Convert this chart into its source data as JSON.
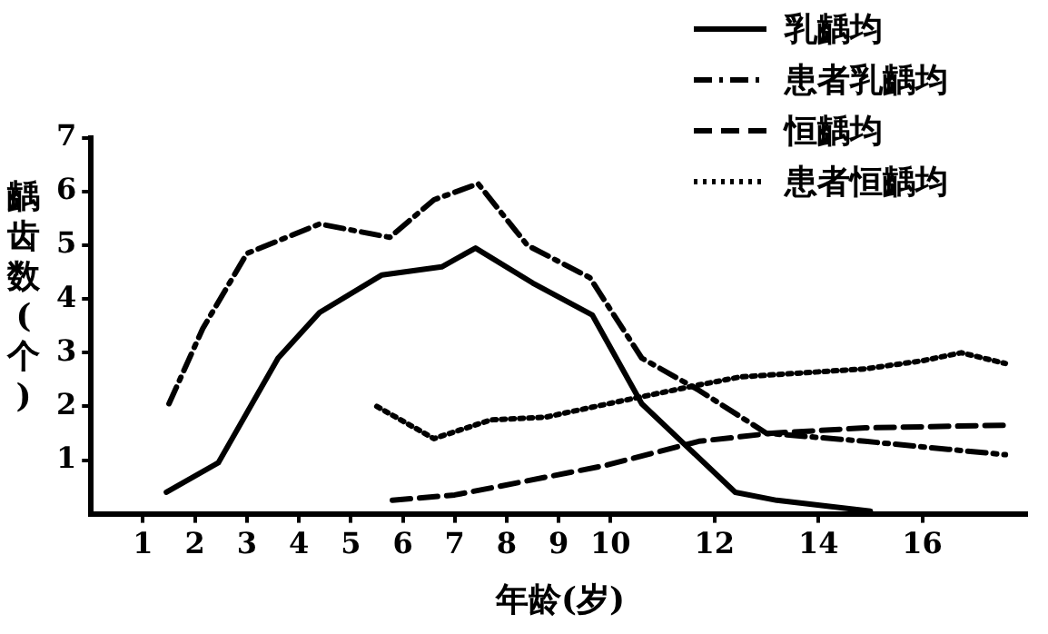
{
  "chart_data": {
    "type": "line",
    "xlabel": "年龄(岁)",
    "ylabel": "齲齿数(个)",
    "legend": "top right",
    "grid": false,
    "marker": "none",
    "xlim": [
      0,
      18
    ],
    "xticks": [
      1,
      2,
      3,
      4,
      5,
      6,
      7,
      8,
      9,
      10,
      12,
      14,
      16
    ],
    "ylim": [
      0,
      7
    ],
    "yticks": [
      1,
      2,
      3,
      4,
      5,
      6,
      7
    ],
    "series": [
      {
        "name": "乳齲均",
        "color": "#000000",
        "line_style": "solid",
        "x": [
          1.45,
          2.45,
          3.6,
          4.4,
          5.6,
          6.75,
          7.4,
          8.5,
          9.65,
          10.6,
          12.4,
          13.2,
          15
        ],
        "values": [
          0.4,
          0.95,
          2.9,
          3.75,
          4.45,
          4.6,
          4.95,
          4.3,
          3.7,
          2.05,
          0.4,
          0.25,
          0.05
        ]
      },
      {
        "name": "患者乳齲均",
        "color": "#000000",
        "line_style": "dashdot",
        "x": [
          1.5,
          2.15,
          3,
          4.4,
          5.75,
          6.6,
          7.45,
          8.4,
          9.6,
          10.6,
          11.7,
          13,
          14.9,
          16.5,
          17.6
        ],
        "values": [
          2.05,
          3.45,
          4.85,
          5.4,
          5.15,
          5.85,
          6.15,
          5.0,
          4.4,
          2.9,
          2.3,
          1.5,
          1.35,
          1.2,
          1.1
        ]
      },
      {
        "name": "恒齲均",
        "color": "#000000",
        "line_style": "dashed",
        "x": [
          5.8,
          7,
          7.8,
          9.9,
          11.7,
          13.1,
          14.9,
          17.6
        ],
        "values": [
          0.25,
          0.35,
          0.5,
          0.9,
          1.35,
          1.5,
          1.6,
          1.65
        ]
      },
      {
        "name": "患者恒齲均",
        "color": "#000000",
        "line_style": "dotted",
        "x": [
          5.5,
          6.6,
          7.7,
          8.75,
          10.2,
          11.7,
          12.5,
          14.9,
          16,
          16.75,
          17.6
        ],
        "values": [
          2.0,
          1.4,
          1.75,
          1.8,
          2.1,
          2.4,
          2.55,
          2.7,
          2.85,
          3.0,
          2.8
        ]
      }
    ]
  }
}
